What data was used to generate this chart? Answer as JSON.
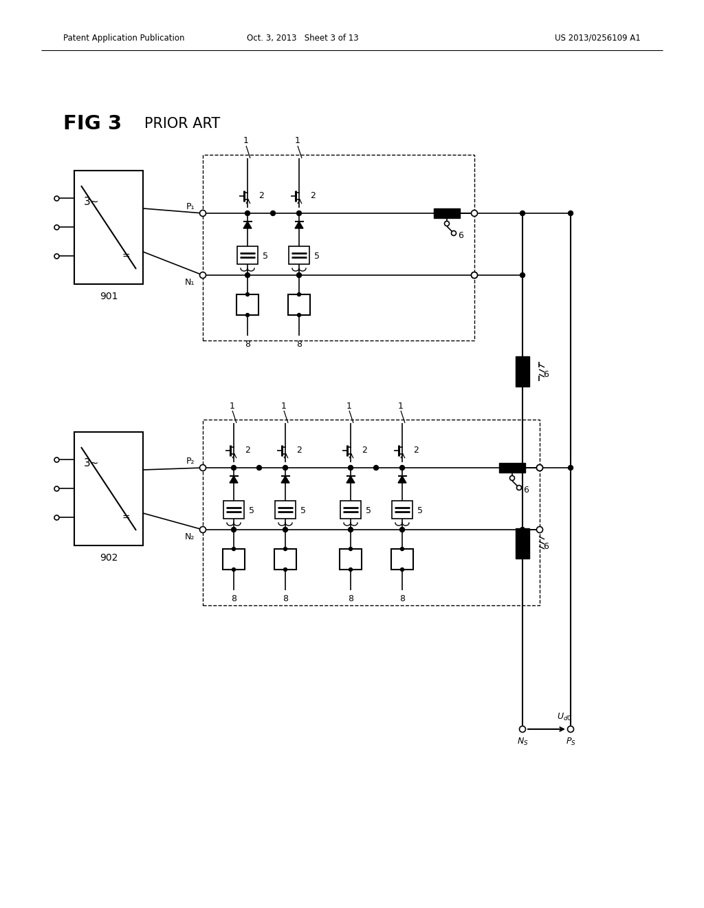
{
  "header_left": "Patent Application Publication",
  "header_center": "Oct. 3, 2013   Sheet 3 of 13",
  "header_right": "US 2013/0256109 A1",
  "bg_color": "#ffffff",
  "title_fig": "FIG 3",
  "title_art": "PRIOR ART",
  "tr1_label": "901",
  "tr2_label": "902",
  "tr_ac_label": "3~",
  "tr_dc_label": "=",
  "p1_label": "P₁",
  "n1_label": "N₁",
  "p2_label": "P₂",
  "n2_label": "N₂",
  "ns_label": "Nₛ",
  "ps_label": "Pₛ",
  "ud0_label": "Uₐ₀",
  "sw_label": "6",
  "igbt_top_label": "1",
  "igbt_gate_label": "2",
  "snub_label": "5",
  "ind_label": "8"
}
